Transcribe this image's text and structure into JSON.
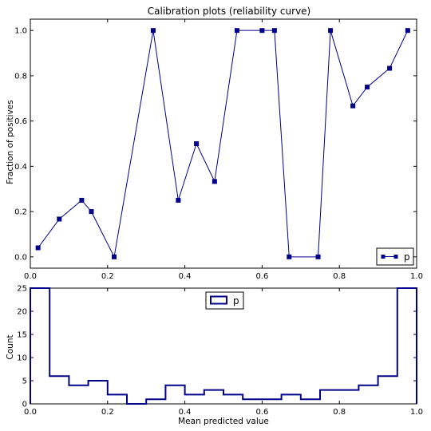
{
  "chart_data": [
    {
      "type": "line",
      "title": "Calibration plots  (reliability curve)",
      "xlabel": "",
      "ylabel": "Fraction of positives",
      "xlim": [
        0.0,
        1.0
      ],
      "ylim": [
        -0.05,
        1.05
      ],
      "xticks": [
        "0.0",
        "0.2",
        "0.4",
        "0.6",
        "0.8",
        "1.0"
      ],
      "yticks": [
        "0.0",
        "0.2",
        "0.4",
        "0.6",
        "0.8",
        "1.0"
      ],
      "legend_position": "lower-right",
      "grid": false,
      "series": [
        {
          "name": "p",
          "color": "#00008b",
          "marker": "square",
          "x": [
            0.02,
            0.075,
            0.133,
            0.158,
            0.217,
            0.318,
            0.383,
            0.43,
            0.477,
            0.535,
            0.6,
            0.632,
            0.67,
            0.745,
            0.777,
            0.835,
            0.872,
            0.93,
            0.977
          ],
          "y": [
            0.04,
            0.167,
            0.25,
            0.2,
            0.0,
            1.0,
            0.25,
            0.5,
            0.333,
            1.0,
            1.0,
            1.0,
            0.0,
            0.0,
            1.0,
            0.667,
            0.75,
            0.833,
            1.0
          ]
        }
      ]
    },
    {
      "type": "histogram",
      "title": "",
      "xlabel": "Mean predicted value",
      "ylabel": "Count",
      "xlim": [
        0.0,
        1.0
      ],
      "ylim": [
        0,
        25
      ],
      "xticks": [
        "0.0",
        "0.2",
        "0.4",
        "0.6",
        "0.8",
        "1.0"
      ],
      "yticks": [
        "0",
        "5",
        "10",
        "15",
        "20",
        "25"
      ],
      "legend_position": "upper-center",
      "grid": false,
      "histtype": "step",
      "series": [
        {
          "name": "p",
          "color": "#00008b",
          "bin_edges": [
            0.0,
            0.05,
            0.1,
            0.15,
            0.2,
            0.25,
            0.3,
            0.35,
            0.4,
            0.45,
            0.5,
            0.55,
            0.6,
            0.65,
            0.7,
            0.75,
            0.8,
            0.85,
            0.9,
            0.95,
            1.0
          ],
          "counts": [
            25,
            6,
            4,
            5,
            2,
            0,
            1,
            4,
            2,
            3,
            2,
            1,
            1,
            2,
            1,
            3,
            3,
            4,
            6,
            25
          ]
        }
      ]
    }
  ]
}
